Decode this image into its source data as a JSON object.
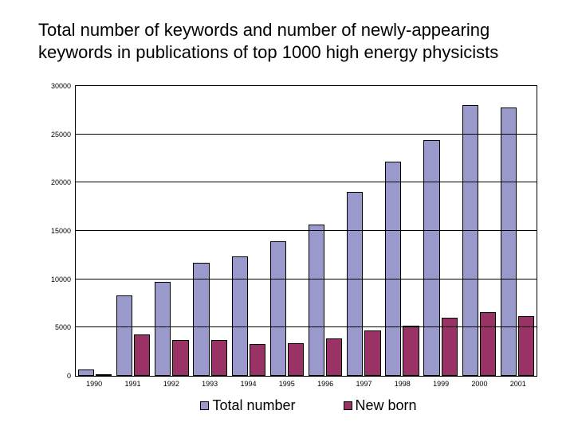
{
  "title": "Total number of keywords and number of newly-appearing keywords in publications of top 1000 high energy physicists",
  "chart": {
    "type": "bar",
    "background_color": "#ffffff",
    "border_color": "#000000",
    "grid_color": "#000000",
    "ylim": [
      0,
      30000
    ],
    "ytick_step": 5000,
    "yticks": [
      0,
      5000,
      10000,
      15000,
      20000,
      25000,
      30000
    ],
    "label_fontsize": 9,
    "categories": [
      "1990",
      "1991",
      "1992",
      "1993",
      "1994",
      "1995",
      "1996",
      "1997",
      "1998",
      "1999",
      "2000",
      "2001"
    ],
    "series": [
      {
        "name": "Total number",
        "color": "#9999cc",
        "values": [
          700,
          8300,
          9700,
          11700,
          12400,
          13900,
          15700,
          19000,
          22200,
          24400,
          28000,
          27800
        ]
      },
      {
        "name": "New born",
        "color": "#993366",
        "values": [
          0,
          4300,
          3700,
          3700,
          3300,
          3400,
          3900,
          4700,
          5200,
          6000,
          6600,
          6200
        ]
      }
    ]
  }
}
